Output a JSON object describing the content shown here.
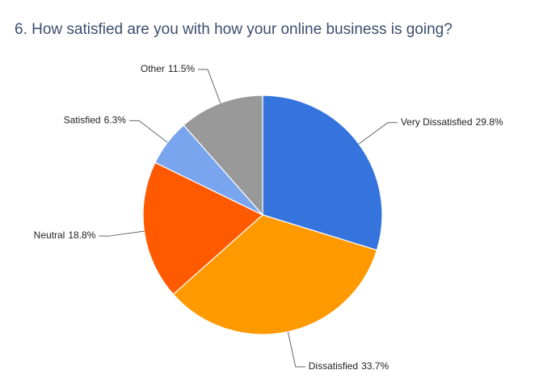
{
  "chart_data": {
    "type": "pie",
    "title": "6. How satisfied are you with how your online business is going?",
    "categories": [
      "Very Dissatisfied",
      "Dissatisfied",
      "Neutral",
      "Satisfied",
      "Other"
    ],
    "values": [
      29.8,
      33.7,
      18.8,
      6.3,
      11.5
    ],
    "value_labels": [
      "29.8%",
      "33.7%",
      "18.8%",
      "6.3%",
      "11.5%"
    ],
    "colors": [
      "#3574dc",
      "#ff9900",
      "#ff5a00",
      "#79a5ee",
      "#999999"
    ]
  }
}
